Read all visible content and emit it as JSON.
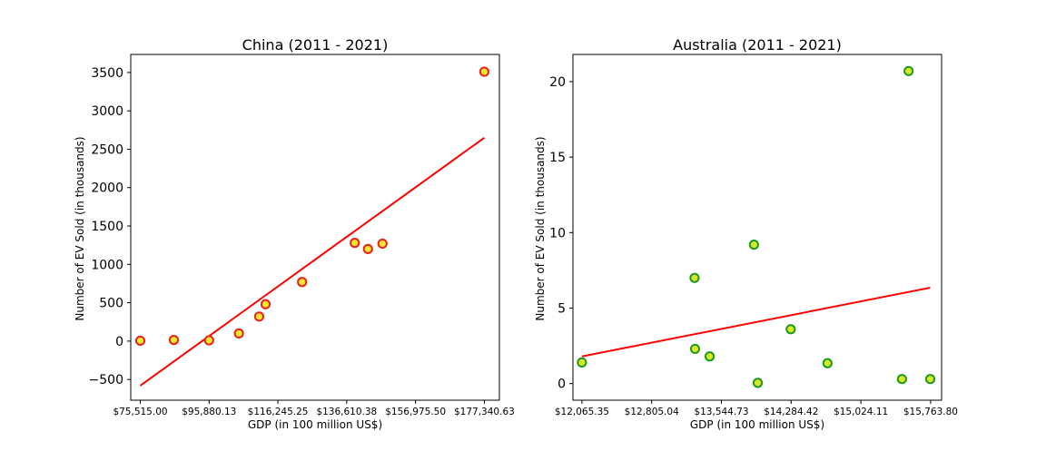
{
  "chart_data": [
    {
      "type": "scatter",
      "title": "China (2011 - 2021)",
      "xlabel": "GDP (in 100 million US$)",
      "ylabel": "Number of EV Sold (in thousands)",
      "xlim": [
        72690,
        181800
      ],
      "ylim": [
        -770,
        3735
      ],
      "xticks": [
        75515.0,
        95880.13,
        116245.25,
        136610.38,
        156975.5,
        177340.63
      ],
      "xtick_labels": [
        "$75,515.00",
        "$95,880.13",
        "$116,245.25",
        "$136,610.38",
        "$156,975.50",
        "$177,340.63"
      ],
      "yticks": [
        -500,
        0,
        500,
        1000,
        1500,
        2000,
        2500,
        3000,
        3500
      ],
      "ytick_labels": [
        "−500",
        "0",
        "500",
        "1000",
        "1500",
        "2000",
        "2500",
        "3000",
        "3500"
      ],
      "points": {
        "x": [
          75515,
          85440,
          95880,
          104700,
          110700,
          112600,
          123400,
          139000,
          142900,
          147200,
          177340
        ],
        "y": [
          5,
          15,
          10,
          100,
          320,
          480,
          770,
          1280,
          1200,
          1270,
          3510
        ]
      },
      "trendline": {
        "x": [
          75515,
          177340
        ],
        "y": [
          -580,
          2650
        ]
      },
      "marker_face": "#f5e632",
      "marker_edge": "#e8231a",
      "line_color": "#ff0000",
      "grid": false,
      "legend": "none"
    },
    {
      "type": "scatter",
      "title": "Australia (2011 - 2021)",
      "xlabel": "GDP (in 100 million US$)",
      "ylabel": "Number of EV Sold (in thousands)",
      "xlim": [
        11970,
        15880
      ],
      "ylim": [
        -1.1,
        21.8
      ],
      "xticks": [
        12065.35,
        12805.04,
        13544.73,
        14284.42,
        15024.11,
        15763.8
      ],
      "xtick_labels": [
        "$12,065.35",
        "$12,805.04",
        "$13,544.73",
        "$14,284.42",
        "$15,024.11",
        "$15,763.80"
      ],
      "yticks": [
        0,
        5,
        10,
        15,
        20
      ],
      "ytick_labels": [
        "0",
        "5",
        "10",
        "15",
        "20"
      ],
      "points": {
        "x": [
          12065,
          13260,
          13265,
          13420,
          13890,
          13930,
          14280,
          14670,
          15460,
          15530,
          15760
        ],
        "y": [
          1.4,
          7.0,
          2.3,
          1.8,
          9.2,
          0.05,
          3.6,
          1.35,
          0.3,
          20.7,
          0.3
        ]
      },
      "trendline": {
        "x": [
          12065,
          15760
        ],
        "y": [
          1.8,
          6.35
        ]
      },
      "marker_face": "#d6e829",
      "marker_edge": "#1e9a1e",
      "line_color": "#ff0000",
      "grid": false,
      "legend": "none"
    }
  ]
}
